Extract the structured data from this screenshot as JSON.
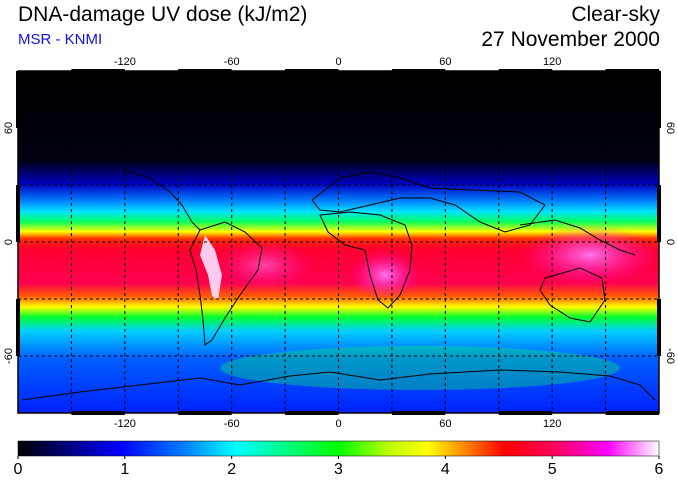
{
  "header": {
    "title": "DNA-damage UV dose (kJ/m2)",
    "source": "MSR - KNMI",
    "sky_condition": "Clear-sky",
    "date": "27 November 2000"
  },
  "map": {
    "lon_ticks": [
      -120,
      -60,
      0,
      60,
      120
    ],
    "lat_ticks": [
      60,
      0,
      -60
    ],
    "lon_range": [
      -180,
      180
    ],
    "lat_range": [
      -90,
      90
    ],
    "grid": true
  },
  "colorbar": {
    "ticks": [
      "0",
      "1",
      "2",
      "3",
      "4",
      "5",
      "6"
    ],
    "range": [
      0,
      6
    ],
    "colors": [
      "#000000",
      "#0000c0",
      "#0050ff",
      "#00e0ff",
      "#00ff40",
      "#ffff00",
      "#ff8000",
      "#ff0040",
      "#ff00c0",
      "#ffffff"
    ]
  }
}
